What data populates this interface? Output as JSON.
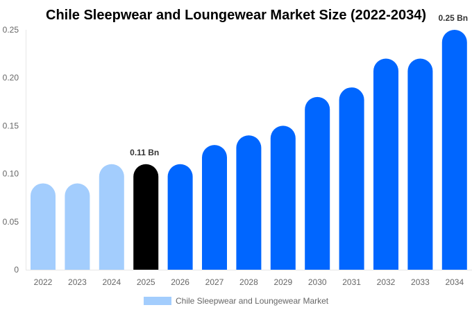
{
  "chart_data": {
    "type": "bar",
    "title": "Chile Sleepwear and Loungewear Market Size (2022-2034)",
    "xlabel": "",
    "ylabel": "",
    "categories": [
      "2022",
      "2023",
      "2024",
      "2025",
      "2026",
      "2027",
      "2028",
      "2029",
      "2030",
      "2031",
      "2032",
      "2033",
      "2034"
    ],
    "series": [
      {
        "name": "Chile Sleepwear and Loungewear Market",
        "values": [
          0.09,
          0.09,
          0.11,
          0.11,
          0.11,
          0.13,
          0.14,
          0.15,
          0.18,
          0.19,
          0.22,
          0.22,
          0.25
        ]
      }
    ],
    "ylim": [
      0,
      0.25
    ],
    "yticks": [
      "0",
      "0.05",
      "0.10",
      "0.15",
      "0.20",
      "0.25"
    ],
    "grid": false,
    "legend": "bottom",
    "bar_colors": [
      "#a3cdfd",
      "#a3cdfd",
      "#a3cdfd",
      "#000000",
      "#0066ff",
      "#0066ff",
      "#0066ff",
      "#0066ff",
      "#0066ff",
      "#0066ff",
      "#0066ff",
      "#0066ff",
      "#0066ff"
    ],
    "legend_color": "#a3cdfd",
    "annotations": [
      {
        "category": "2025",
        "text": "0.11 Bn"
      },
      {
        "category": "2034",
        "text": "0.25 Bn"
      }
    ]
  }
}
